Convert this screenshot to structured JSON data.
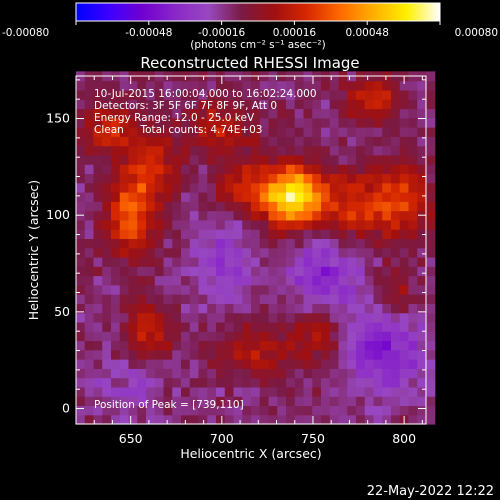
{
  "colorbar": {
    "tick_labels": [
      "-0.00080",
      "-0.00048",
      "-0.00016",
      "0.00016",
      "0.00048",
      "0.00080"
    ],
    "tick_values": [
      -0.0008,
      -0.00048,
      -0.00016,
      0.00016,
      0.00048,
      0.0008
    ],
    "units_label": "(photons cm⁻² s⁻¹ asec⁻²)"
  },
  "chart_data": {
    "type": "heatmap",
    "title": "Reconstructed RHESSI Image",
    "xlabel": "Heliocentric X (arcsec)",
    "ylabel": "Heliocentric Y (arcsec)",
    "xlim": [
      620,
      812
    ],
    "ylim": [
      -8,
      172
    ],
    "xticks": [
      650,
      700,
      750,
      800
    ],
    "yticks": [
      0,
      50,
      100,
      150
    ],
    "value_range": [
      -0.0008,
      0.0008
    ],
    "colormap": [
      "#0000ff",
      "#3c00ff",
      "#7000d0",
      "#8a28c8",
      "#9848c0",
      "#7a1a44",
      "#a01010",
      "#d82800",
      "#ff6a00",
      "#ffb000",
      "#fff000",
      "#ffffff"
    ],
    "info_lines": [
      "10-Jul-2015 16:00:04.000 to 16:02:24.000",
      "Detectors: 3F 5F 6F 7F 8F 9F, Att 0",
      "Energy Range: 12.0 - 25.0 keV",
      "Clean     Total counts: 4.74E+03"
    ],
    "peak_label": "Position of Peak = [739,110]",
    "peak": [
      739,
      110
    ],
    "sources": [
      {
        "x": 739,
        "y": 110,
        "amp": 0.00082,
        "sx": 12,
        "sy": 11
      },
      {
        "x": 650,
        "y": 100,
        "amp": 0.00045,
        "sx": 9,
        "sy": 14
      },
      {
        "x": 662,
        "y": 125,
        "amp": 0.0003,
        "sx": 10,
        "sy": 12
      },
      {
        "x": 640,
        "y": 145,
        "amp": 0.00028,
        "sx": 12,
        "sy": 10
      },
      {
        "x": 700,
        "y": 145,
        "amp": 0.00025,
        "sx": 14,
        "sy": 10
      },
      {
        "x": 712,
        "y": 115,
        "amp": 0.0003,
        "sx": 10,
        "sy": 8
      },
      {
        "x": 783,
        "y": 160,
        "amp": 0.0003,
        "sx": 10,
        "sy": 8
      },
      {
        "x": 775,
        "y": 105,
        "amp": 0.00035,
        "sx": 15,
        "sy": 12
      },
      {
        "x": 800,
        "y": 110,
        "amp": 0.0003,
        "sx": 10,
        "sy": 14
      },
      {
        "x": 660,
        "y": 40,
        "amp": 0.0003,
        "sx": 9,
        "sy": 10
      },
      {
        "x": 720,
        "y": 30,
        "amp": 0.00025,
        "sx": 15,
        "sy": 8
      },
      {
        "x": 752,
        "y": 40,
        "amp": 0.00022,
        "sx": 10,
        "sy": 10
      },
      {
        "x": 795,
        "y": 60,
        "amp": 0.00018,
        "sx": 8,
        "sy": 10
      },
      {
        "x": 700,
        "y": 75,
        "amp": -0.0002,
        "sx": 12,
        "sy": 14
      },
      {
        "x": 755,
        "y": 70,
        "amp": -0.00025,
        "sx": 14,
        "sy": 14
      },
      {
        "x": 790,
        "y": 30,
        "amp": -0.0003,
        "sx": 14,
        "sy": 16
      },
      {
        "x": 650,
        "y": 10,
        "amp": -0.00012,
        "sx": 14,
        "sy": 10
      }
    ]
  },
  "footer": {
    "date_stamp": "22-May-2022 12:22"
  }
}
